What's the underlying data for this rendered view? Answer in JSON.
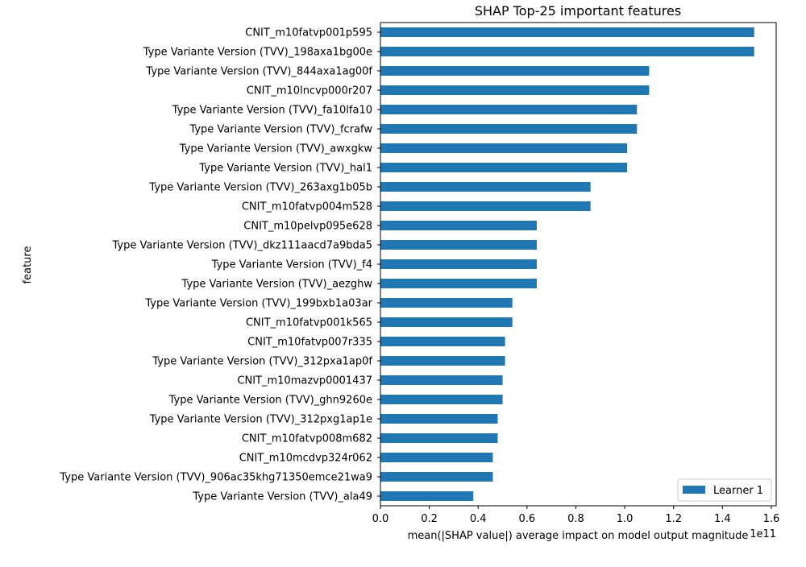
{
  "chart_data": {
    "type": "bar",
    "orientation": "horizontal",
    "title": "SHAP Top-25 important features",
    "xlabel": "mean(|SHAP value|) average impact on model output magnitude",
    "ylabel": "feature",
    "x_scale_label": "1e11",
    "xlim": [
      0,
      1.62
    ],
    "xticks": [
      0.0,
      0.2,
      0.4,
      0.6,
      0.8,
      1.0,
      1.2,
      1.4,
      1.6
    ],
    "xtick_labels": [
      "0.0",
      "0.2",
      "0.4",
      "0.6",
      "0.8",
      "1.0",
      "1.2",
      "1.4",
      "1.6"
    ],
    "grid": false,
    "legend_position": "lower-right",
    "categories": [
      "CNIT_m10fatvp001p595",
      "Type Variante Version (TVV)_198axa1bg00e",
      "Type Variante Version (TVV)_844axa1ag00f",
      "CNIT_m10lncvp000r207",
      "Type Variante Version (TVV)_fa10lfa10",
      "Type Variante Version (TVV)_fcrafw",
      "Type Variante Version (TVV)_awxgkw",
      "Type Variante Version (TVV)_hal1",
      "Type Variante Version (TVV)_263axg1b05b",
      "CNIT_m10fatvp004m528",
      "CNIT_m10pelvp095e628",
      "Type Variante Version (TVV)_dkz111aacd7a9bda5",
      "Type Variante Version (TVV)_f4",
      "Type Variante Version (TVV)_aezghw",
      "Type Variante Version (TVV)_199bxb1a03ar",
      "CNIT_m10fatvp001k565",
      "CNIT_m10fatvp007r335",
      "Type Variante Version (TVV)_312pxa1ap0f",
      "CNIT_m10mazvp0001437",
      "Type Variante Version (TVV)_ghn9260e",
      "Type Variante Version (TVV)_312pxg1ap1e",
      "CNIT_m10fatvp008m682",
      "CNIT_m10mcdvp324r062",
      "Type Variante Version (TVV)_906ac35khg71350emce21wa9",
      "Type Variante Version (TVV)_ala49"
    ],
    "series": [
      {
        "name": "Learner 1",
        "color": "#1f77b4",
        "values": [
          1.53,
          1.53,
          1.1,
          1.1,
          1.05,
          1.05,
          1.01,
          1.01,
          0.86,
          0.86,
          0.64,
          0.64,
          0.64,
          0.64,
          0.54,
          0.54,
          0.51,
          0.51,
          0.5,
          0.5,
          0.48,
          0.48,
          0.46,
          0.46,
          0.38
        ]
      }
    ]
  }
}
